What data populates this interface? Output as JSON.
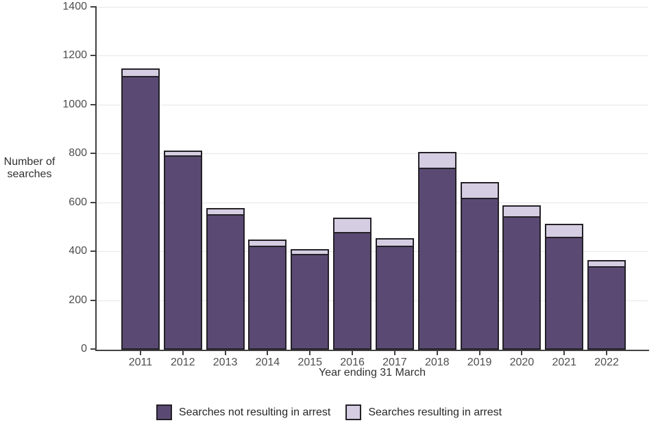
{
  "chart_data": {
    "type": "bar",
    "stacked": true,
    "title": "",
    "xlabel": "Year ending 31 March",
    "ylabel": "Number of searches",
    "categories": [
      "2011",
      "2012",
      "2013",
      "2014",
      "2015",
      "2016",
      "2017",
      "2018",
      "2019",
      "2020",
      "2021",
      "2022"
    ],
    "series": [
      {
        "name": "Searches not resulting in arrest",
        "color": "#5a4a73",
        "values": [
          1115,
          790,
          550,
          420,
          385,
          475,
          420,
          740,
          615,
          540,
          455,
          335
        ]
      },
      {
        "name": "Searches resulting in arrest",
        "color": "#d5cde2",
        "values": [
          35,
          25,
          30,
          30,
          25,
          65,
          35,
          70,
          70,
          50,
          60,
          30
        ]
      }
    ],
    "totals": [
      1150,
      815,
      580,
      450,
      410,
      540,
      455,
      810,
      685,
      590,
      515,
      365
    ],
    "ylim": [
      0,
      1400
    ],
    "yticks": [
      0,
      200,
      400,
      600,
      800,
      1000,
      1200,
      1400
    ],
    "grid": true,
    "legend_position": "bottom",
    "bar_outline_color": "#232026",
    "axis_color": "#404040",
    "gridline_color": "#e6e6e6"
  }
}
